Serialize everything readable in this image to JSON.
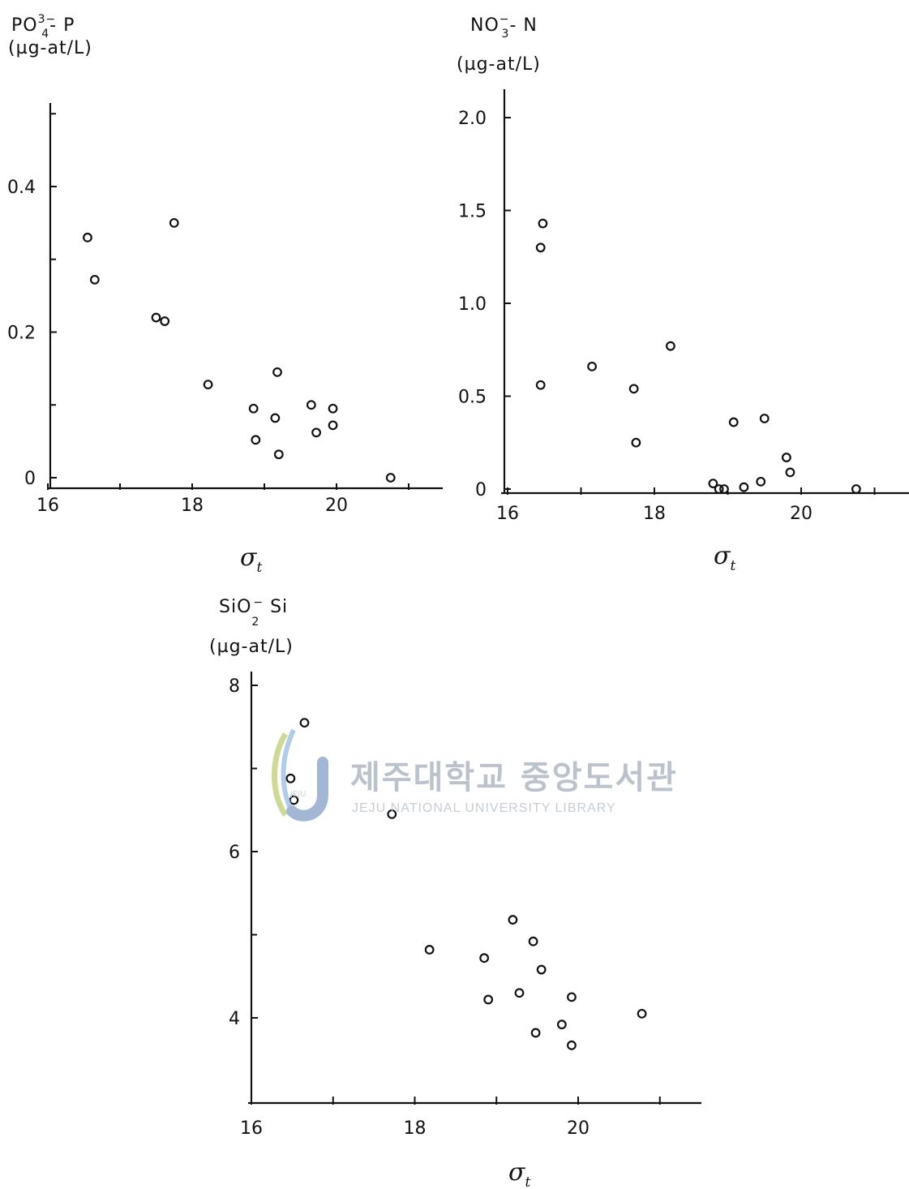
{
  "chart_data": [
    {
      "type": "scatter",
      "ylabel": {
        "species": "PO",
        "sub": "4",
        "sup": "3−",
        "element": "P",
        "unit": "(µg-at/L)"
      },
      "xlabel": {
        "symbol": "σ",
        "sub": "t"
      },
      "xticks": [
        "16",
        "18",
        "20"
      ],
      "yticks": [
        "0",
        "0.2",
        "0.4"
      ],
      "xlim": [
        16,
        21.4
      ],
      "ylim": [
        0,
        0.52
      ],
      "points": [
        {
          "x": 16.55,
          "y": 0.33
        },
        {
          "x": 16.65,
          "y": 0.272
        },
        {
          "x": 17.75,
          "y": 0.35
        },
        {
          "x": 17.5,
          "y": 0.22
        },
        {
          "x": 17.62,
          "y": 0.215
        },
        {
          "x": 18.22,
          "y": 0.128
        },
        {
          "x": 18.85,
          "y": 0.095
        },
        {
          "x": 18.88,
          "y": 0.052
        },
        {
          "x": 19.15,
          "y": 0.082
        },
        {
          "x": 19.18,
          "y": 0.145
        },
        {
          "x": 19.2,
          "y": 0.032
        },
        {
          "x": 19.65,
          "y": 0.1
        },
        {
          "x": 19.72,
          "y": 0.062
        },
        {
          "x": 19.95,
          "y": 0.095
        },
        {
          "x": 19.95,
          "y": 0.072
        },
        {
          "x": 20.75,
          "y": 0.0
        }
      ]
    },
    {
      "type": "scatter",
      "ylabel": {
        "species": "NO",
        "sub": "3",
        "sup": "−",
        "element": "N",
        "unit": "(µg-at/L)"
      },
      "xlabel": {
        "symbol": "σ",
        "sub": "t"
      },
      "xticks": [
        "16",
        "18",
        "20"
      ],
      "yticks": [
        "0",
        "0.5",
        "1.0",
        "1.5",
        "2.0"
      ],
      "xlim": [
        16,
        21.4
      ],
      "ylim": [
        0,
        2.15
      ],
      "points": [
        {
          "x": 16.45,
          "y": 1.3
        },
        {
          "x": 16.48,
          "y": 1.43
        },
        {
          "x": 16.45,
          "y": 0.56
        },
        {
          "x": 17.15,
          "y": 0.66
        },
        {
          "x": 17.72,
          "y": 0.54
        },
        {
          "x": 17.75,
          "y": 0.25
        },
        {
          "x": 18.22,
          "y": 0.77
        },
        {
          "x": 18.8,
          "y": 0.03
        },
        {
          "x": 18.88,
          "y": 0.0
        },
        {
          "x": 18.95,
          "y": 0.0
        },
        {
          "x": 19.08,
          "y": 0.36
        },
        {
          "x": 19.22,
          "y": 0.01
        },
        {
          "x": 19.45,
          "y": 0.04
        },
        {
          "x": 19.5,
          "y": 0.38
        },
        {
          "x": 19.8,
          "y": 0.17
        },
        {
          "x": 19.85,
          "y": 0.09
        },
        {
          "x": 20.75,
          "y": 0.0
        }
      ]
    },
    {
      "type": "scatter",
      "ylabel": {
        "species": "SiO",
        "sub": "2",
        "sup": "−",
        "element": "Si",
        "unit": "(µg-at/L)"
      },
      "xlabel": {
        "symbol": "σ",
        "sub": "t"
      },
      "xticks": [
        "16",
        "18",
        "20"
      ],
      "yticks": [
        "4",
        "6",
        "8"
      ],
      "xlim": [
        16,
        21.0
      ],
      "ylim": [
        3.0,
        8.1
      ],
      "points": [
        {
          "x": 16.65,
          "y": 7.55
        },
        {
          "x": 16.48,
          "y": 6.88
        },
        {
          "x": 16.52,
          "y": 6.62
        },
        {
          "x": 17.72,
          "y": 6.45
        },
        {
          "x": 18.18,
          "y": 4.82
        },
        {
          "x": 18.85,
          "y": 4.72
        },
        {
          "x": 18.9,
          "y": 4.22
        },
        {
          "x": 19.2,
          "y": 5.18
        },
        {
          "x": 19.28,
          "y": 4.3
        },
        {
          "x": 19.45,
          "y": 4.92
        },
        {
          "x": 19.48,
          "y": 3.82
        },
        {
          "x": 19.55,
          "y": 4.58
        },
        {
          "x": 19.8,
          "y": 3.92
        },
        {
          "x": 19.92,
          "y": 4.25
        },
        {
          "x": 19.92,
          "y": 3.67
        },
        {
          "x": 20.78,
          "y": 4.05
        }
      ]
    }
  ],
  "watermark": {
    "korean": "제주대학교 중앙도서관",
    "english": "JEJU NATIONAL UNIVERSITY LIBRARY",
    "logo_text": "JEJU"
  }
}
